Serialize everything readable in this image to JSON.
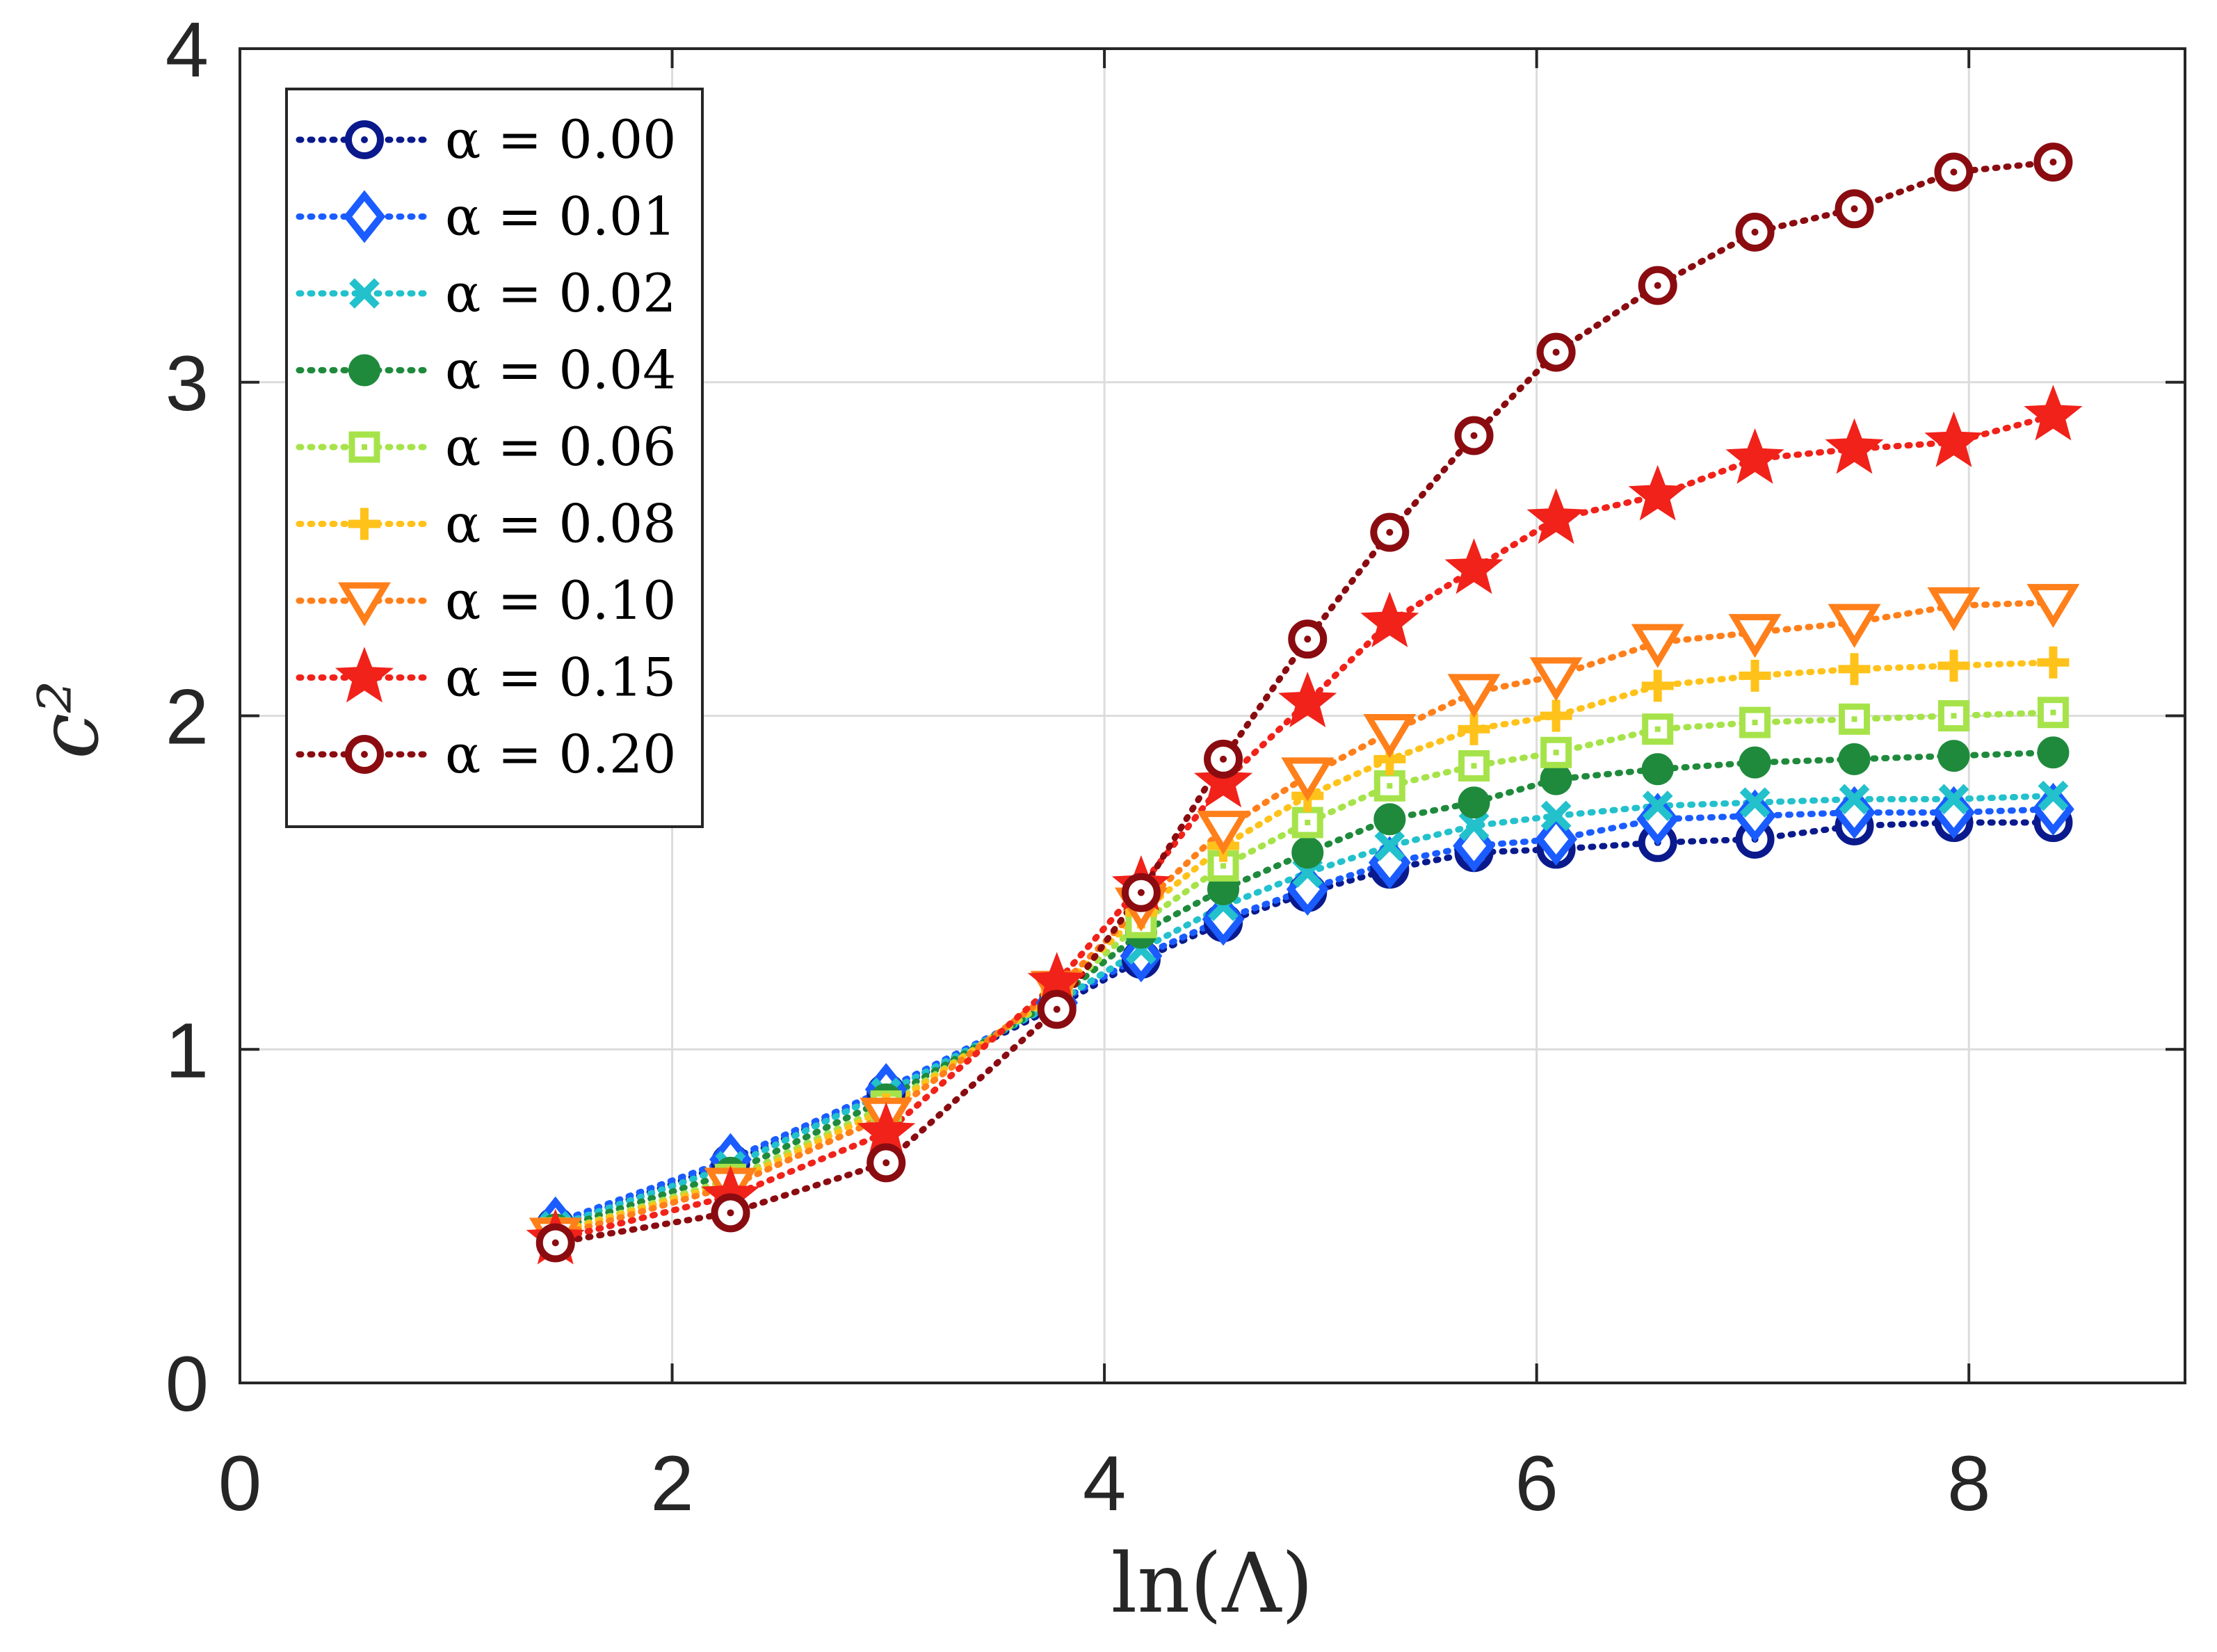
{
  "chart_data": {
    "type": "line",
    "title": "",
    "xlabel": "ln(Λ)",
    "ylabel": "c²",
    "xlim": [
      0,
      9
    ],
    "ylim": [
      0,
      4
    ],
    "xticks": [
      0,
      2,
      4,
      6,
      8
    ],
    "yticks": [
      0,
      1,
      2,
      3,
      4
    ],
    "xtick_labels": [
      "0",
      "2",
      "4",
      "6",
      "8"
    ],
    "ytick_labels": [
      "0",
      "1",
      "2",
      "3",
      "4"
    ],
    "grid": true,
    "legend_position": "top-left",
    "x": [
      1.46,
      2.27,
      2.99,
      3.78,
      4.17,
      4.55,
      4.94,
      5.32,
      5.71,
      6.09,
      6.56,
      7.01,
      7.47,
      7.93,
      8.39
    ],
    "series": [
      {
        "name": "α = 0.00",
        "color": "#0a1a8c",
        "marker": "circle-dot",
        "values": [
          0.47,
          0.66,
          0.87,
          1.13,
          1.27,
          1.38,
          1.47,
          1.54,
          1.59,
          1.6,
          1.62,
          1.63,
          1.67,
          1.68,
          1.68
        ]
      },
      {
        "name": "α = 0.01",
        "color": "#1a5cff",
        "marker": "diamond",
        "values": [
          0.48,
          0.67,
          0.88,
          1.14,
          1.28,
          1.39,
          1.48,
          1.56,
          1.61,
          1.63,
          1.69,
          1.7,
          1.71,
          1.71,
          1.72
        ]
      },
      {
        "name": "α = 0.02",
        "color": "#22c1cc",
        "marker": "x",
        "values": [
          0.47,
          0.65,
          0.87,
          1.14,
          1.3,
          1.43,
          1.53,
          1.61,
          1.67,
          1.7,
          1.73,
          1.74,
          1.75,
          1.75,
          1.76
        ]
      },
      {
        "name": "α = 0.04",
        "color": "#1f8a3c",
        "marker": "filled-circle",
        "values": [
          0.46,
          0.63,
          0.85,
          1.15,
          1.35,
          1.48,
          1.59,
          1.69,
          1.74,
          1.81,
          1.84,
          1.86,
          1.87,
          1.88,
          1.89
        ]
      },
      {
        "name": "α = 0.06",
        "color": "#a6e34a",
        "marker": "square-dot",
        "values": [
          0.45,
          0.61,
          0.83,
          1.16,
          1.38,
          1.55,
          1.68,
          1.79,
          1.85,
          1.89,
          1.96,
          1.98,
          1.99,
          2.0,
          2.01
        ]
      },
      {
        "name": "α = 0.08",
        "color": "#ffc21a",
        "marker": "plus",
        "values": [
          0.45,
          0.6,
          0.82,
          1.17,
          1.41,
          1.61,
          1.76,
          1.87,
          1.96,
          2.0,
          2.09,
          2.12,
          2.14,
          2.15,
          2.16
        ]
      },
      {
        "name": "α = 0.10",
        "color": "#ff7f1a",
        "marker": "triangle-down",
        "values": [
          0.44,
          0.59,
          0.8,
          1.18,
          1.43,
          1.66,
          1.82,
          1.95,
          2.07,
          2.12,
          2.22,
          2.25,
          2.28,
          2.33,
          2.34
        ]
      },
      {
        "name": "α = 0.15",
        "color": "#f0221a",
        "marker": "star",
        "values": [
          0.43,
          0.56,
          0.75,
          1.2,
          1.49,
          1.8,
          2.04,
          2.28,
          2.44,
          2.59,
          2.66,
          2.77,
          2.8,
          2.82,
          2.9
        ]
      },
      {
        "name": "α = 0.20",
        "color": "#8a0c10",
        "marker": "circle-dot",
        "values": [
          0.42,
          0.51,
          0.66,
          1.12,
          1.47,
          1.87,
          2.23,
          2.55,
          2.84,
          3.09,
          3.29,
          3.45,
          3.52,
          3.63,
          3.66
        ]
      }
    ]
  }
}
